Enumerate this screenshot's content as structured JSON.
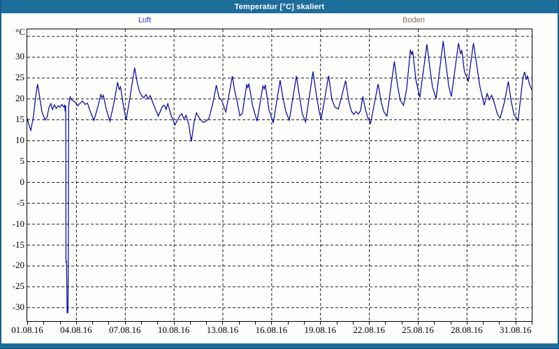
{
  "window": {
    "title": "Temperatur [°C] skaliert"
  },
  "colors": {
    "titlebar_bg": "#1e6e9c",
    "titlebar_text": "#ffffff",
    "frame": "#1a5d8c",
    "plot_background": "#fdfdfc",
    "plot_border": "#000000",
    "gridline": "#1a1a1a",
    "tick_label": "#000000",
    "luft_label": "#2b2bd0",
    "boden_label": "#8a7050",
    "curve": "#0000a0"
  },
  "chart_data": {
    "type": "line",
    "title": "Temperatur [°C] skaliert",
    "y_unit_label": "°C",
    "grid": "dashed",
    "legend_position": "top",
    "x_range_days": [
      0,
      31
    ],
    "x_tick_days": [
      0,
      3,
      6,
      9,
      12,
      15,
      18,
      21,
      24,
      27,
      30
    ],
    "x_tick_labels": [
      "01.08.16",
      "04.08.16",
      "07.08.16",
      "10.08.16",
      "13.08.16",
      "16.08.16",
      "19.08.16",
      "22.08.16",
      "25.08.16",
      "28.08.16",
      "31.08.16"
    ],
    "x_minor_tick_every_days": 1,
    "y_tick_values": [
      30,
      25,
      20,
      15,
      10,
      5,
      0,
      -5,
      -10,
      -15,
      -20,
      -25,
      -30
    ],
    "y_gridline_values": [
      35,
      30,
      25,
      20,
      15,
      10,
      5,
      0,
      -5,
      -10,
      -15,
      -20,
      -25,
      -30
    ],
    "ylim": [
      -33.3,
      36.6
    ],
    "series": [
      {
        "name": "Luft",
        "color": "#2b2bd0",
        "curve_color": "#0000a0",
        "visible": true,
        "points_day_value": [
          [
            0.0,
            15.3
          ],
          [
            0.08,
            13.9
          ],
          [
            0.22,
            12.4
          ],
          [
            0.38,
            15.8
          ],
          [
            0.52,
            20.5
          ],
          [
            0.63,
            23.5
          ],
          [
            0.74,
            21.0
          ],
          [
            0.9,
            16.8
          ],
          [
            1.1,
            14.9
          ],
          [
            1.22,
            15.6
          ],
          [
            1.34,
            17.9
          ],
          [
            1.45,
            18.8
          ],
          [
            1.55,
            17.4
          ],
          [
            1.67,
            18.5
          ],
          [
            1.78,
            17.6
          ],
          [
            1.9,
            18.3
          ],
          [
            2.02,
            17.9
          ],
          [
            2.12,
            18.6
          ],
          [
            2.24,
            18.0
          ],
          [
            2.3,
            18.4
          ],
          [
            2.33,
            16.9
          ],
          [
            2.36,
            18.3
          ],
          [
            2.375,
            4.9
          ],
          [
            2.38,
            -18.6
          ],
          [
            2.39,
            -19.4
          ],
          [
            2.41,
            -18.8
          ],
          [
            2.43,
            -23.8
          ],
          [
            2.45,
            -31.3
          ],
          [
            2.5,
            -31.3
          ],
          [
            2.52,
            -19.5
          ],
          [
            2.54,
            18.0
          ],
          [
            2.6,
            19.9
          ],
          [
            2.64,
            20.4
          ],
          [
            2.7,
            19.8
          ],
          [
            2.85,
            19.4
          ],
          [
            2.95,
            19.1
          ],
          [
            3.1,
            18.3
          ],
          [
            3.25,
            18.9
          ],
          [
            3.4,
            19.4
          ],
          [
            3.55,
            18.6
          ],
          [
            3.7,
            18.9
          ],
          [
            3.88,
            16.8
          ],
          [
            4.1,
            14.8
          ],
          [
            4.35,
            18.2
          ],
          [
            4.52,
            21.0
          ],
          [
            4.6,
            20.2
          ],
          [
            4.68,
            20.8
          ],
          [
            4.85,
            17.5
          ],
          [
            5.08,
            14.6
          ],
          [
            5.32,
            18.8
          ],
          [
            5.55,
            23.9
          ],
          [
            5.65,
            22.2
          ],
          [
            5.73,
            22.8
          ],
          [
            5.9,
            18.5
          ],
          [
            6.08,
            14.9
          ],
          [
            6.32,
            20.5
          ],
          [
            6.6,
            27.4
          ],
          [
            6.75,
            24.0
          ],
          [
            6.9,
            21.6
          ],
          [
            7.05,
            20.6
          ],
          [
            7.16,
            20.2
          ],
          [
            7.3,
            21.0
          ],
          [
            7.43,
            19.9
          ],
          [
            7.56,
            20.7
          ],
          [
            7.76,
            18.6
          ],
          [
            8.05,
            15.8
          ],
          [
            8.3,
            18.1
          ],
          [
            8.43,
            18.4
          ],
          [
            8.53,
            17.4
          ],
          [
            8.64,
            18.8
          ],
          [
            8.82,
            16.2
          ],
          [
            9.08,
            13.7
          ],
          [
            9.36,
            15.8
          ],
          [
            9.5,
            16.4
          ],
          [
            9.63,
            15.1
          ],
          [
            9.76,
            16.0
          ],
          [
            9.92,
            13.9
          ],
          [
            10.08,
            9.7
          ],
          [
            10.26,
            14.6
          ],
          [
            10.4,
            16.6
          ],
          [
            10.52,
            15.7
          ],
          [
            10.64,
            15.0
          ],
          [
            10.82,
            14.3
          ],
          [
            11.02,
            14.7
          ],
          [
            11.18,
            15.4
          ],
          [
            11.42,
            19.2
          ],
          [
            11.62,
            23.2
          ],
          [
            11.78,
            20.3
          ],
          [
            11.95,
            19.6
          ],
          [
            12.2,
            16.8
          ],
          [
            12.4,
            21.0
          ],
          [
            12.6,
            25.4
          ],
          [
            12.74,
            22.0
          ],
          [
            12.88,
            19.6
          ],
          [
            13.06,
            15.9
          ],
          [
            13.22,
            16.5
          ],
          [
            13.48,
            23.3
          ],
          [
            13.55,
            22.6
          ],
          [
            13.62,
            23.6
          ],
          [
            13.85,
            18.2
          ],
          [
            14.12,
            14.6
          ],
          [
            14.48,
            23.0
          ],
          [
            14.56,
            22.3
          ],
          [
            14.63,
            23.3
          ],
          [
            14.85,
            17.3
          ],
          [
            15.12,
            14.2
          ],
          [
            15.54,
            24.4
          ],
          [
            15.72,
            20.0
          ],
          [
            15.9,
            16.8
          ],
          [
            16.1,
            14.8
          ],
          [
            16.54,
            25.4
          ],
          [
            16.72,
            20.8
          ],
          [
            16.9,
            16.4
          ],
          [
            17.1,
            14.4
          ],
          [
            17.56,
            26.5
          ],
          [
            17.76,
            21.0
          ],
          [
            17.92,
            17.2
          ],
          [
            18.06,
            15.0
          ],
          [
            18.52,
            25.5
          ],
          [
            18.72,
            19.8
          ],
          [
            18.9,
            18.0
          ],
          [
            19.12,
            17.5
          ],
          [
            19.56,
            24.3
          ],
          [
            19.76,
            19.3
          ],
          [
            19.92,
            17.0
          ],
          [
            20.06,
            16.2
          ],
          [
            20.2,
            16.9
          ],
          [
            20.34,
            16.3
          ],
          [
            20.48,
            17.1
          ],
          [
            20.62,
            20.5
          ],
          [
            20.78,
            17.4
          ],
          [
            20.94,
            15.3
          ],
          [
            21.1,
            14.1
          ],
          [
            21.56,
            23.5
          ],
          [
            21.76,
            19.0
          ],
          [
            21.92,
            16.8
          ],
          [
            22.1,
            15.8
          ],
          [
            22.56,
            28.9
          ],
          [
            22.76,
            23.0
          ],
          [
            22.92,
            19.6
          ],
          [
            23.12,
            18.4
          ],
          [
            23.32,
            22.5
          ],
          [
            23.54,
            31.7
          ],
          [
            23.62,
            30.5
          ],
          [
            23.68,
            31.4
          ],
          [
            23.88,
            24.5
          ],
          [
            24.12,
            20.3
          ],
          [
            24.56,
            33.0
          ],
          [
            24.72,
            28.0
          ],
          [
            24.9,
            22.8
          ],
          [
            25.12,
            20.0
          ],
          [
            25.56,
            33.8
          ],
          [
            25.72,
            28.5
          ],
          [
            25.9,
            23.0
          ],
          [
            26.06,
            20.5
          ],
          [
            26.5,
            33.3
          ],
          [
            26.62,
            30.8
          ],
          [
            26.7,
            31.5
          ],
          [
            26.86,
            26.5
          ],
          [
            27.1,
            24.2
          ],
          [
            27.42,
            33.3
          ],
          [
            27.62,
            28.0
          ],
          [
            27.82,
            22.8
          ],
          [
            28.08,
            18.4
          ],
          [
            28.26,
            21.2
          ],
          [
            28.4,
            19.7
          ],
          [
            28.54,
            20.8
          ],
          [
            28.72,
            18.7
          ],
          [
            28.88,
            16.4
          ],
          [
            29.06,
            15.3
          ],
          [
            29.32,
            19.2
          ],
          [
            29.56,
            24.1
          ],
          [
            29.72,
            19.8
          ],
          [
            29.9,
            16.2
          ],
          [
            30.06,
            15.4
          ],
          [
            30.16,
            14.7
          ],
          [
            30.46,
            25.0
          ],
          [
            30.56,
            26.4
          ],
          [
            30.66,
            24.5
          ],
          [
            30.73,
            25.4
          ],
          [
            30.88,
            23.2
          ],
          [
            31.0,
            22.2
          ]
        ]
      },
      {
        "name": "Boden",
        "color": "#8a7050",
        "curve_color": "#8a7050",
        "visible": false,
        "points_day_value": []
      }
    ]
  }
}
